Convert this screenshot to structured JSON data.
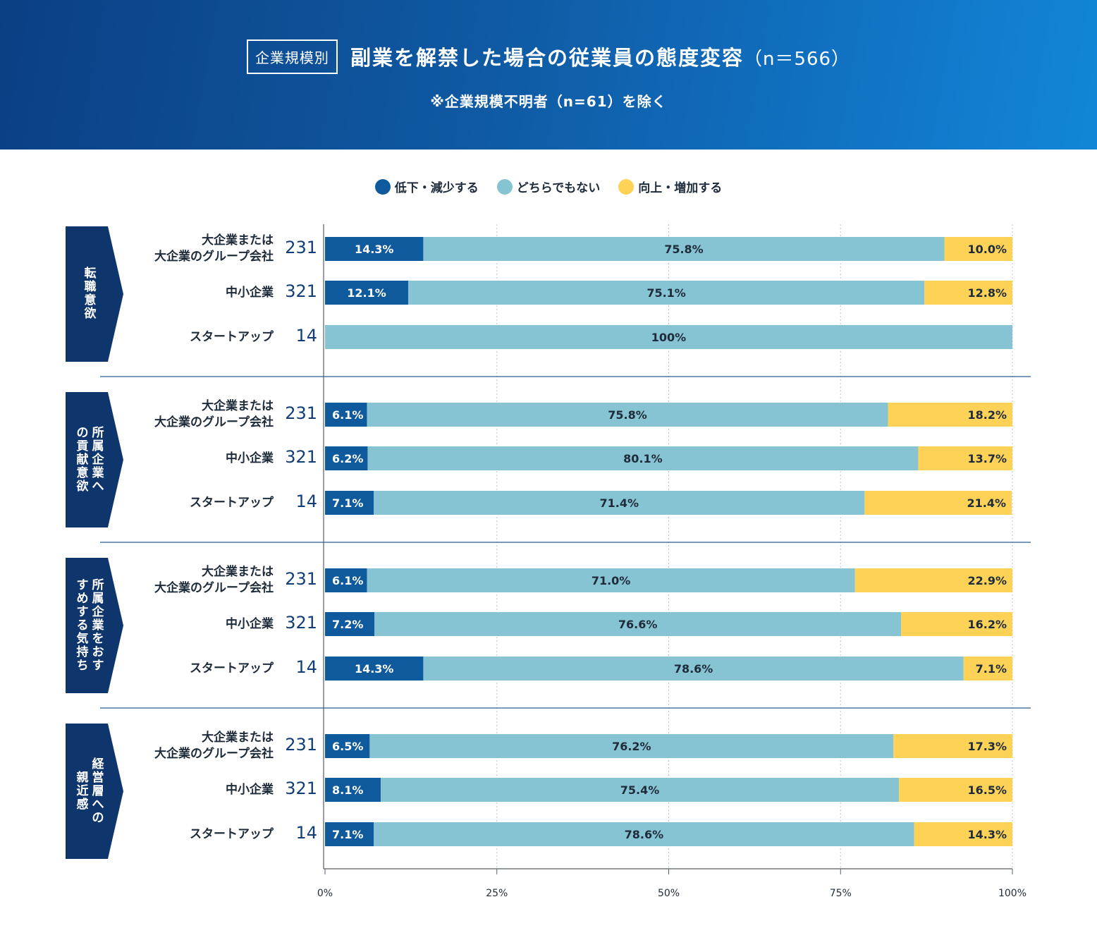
{
  "header": {
    "tag": "企業規模別",
    "title": "副業を解禁した場合の従業員の態度変容",
    "title_n": "（n＝566）",
    "subtitle": "※企業規模不明者（n=61）を除く",
    "bg_color": "#0f5aa3"
  },
  "legend": [
    {
      "label": "低下・減少する",
      "color": "#0f5a9c"
    },
    {
      "label": "どちらでもない",
      "color": "#87c4d3"
    },
    {
      "label": "向上・増加する",
      "color": "#fdd257"
    }
  ],
  "colors": {
    "decrease": "#0f5a9c",
    "neutral": "#87c4d3",
    "increase": "#fdd257",
    "group_label_bg": "#0e356c",
    "divider": "#2a5e93"
  },
  "chart_data": {
    "type": "bar",
    "orientation": "horizontal",
    "stacked": true,
    "xlim": [
      0,
      100
    ],
    "x_ticks": [
      "0%",
      "25%",
      "50%",
      "75%",
      "100%"
    ],
    "series": [
      {
        "name": "低下・減少する"
      },
      {
        "name": "どちらでもない"
      },
      {
        "name": "向上・増加する"
      }
    ],
    "groups": [
      {
        "label": "転職意欲",
        "rows": [
          {
            "label": "大企業または\n大企業のグループ会社",
            "n": "231",
            "values": [
              14.3,
              75.8,
              10.0
            ],
            "labels": [
              "14.3%",
              "75.8%",
              "10.0%"
            ]
          },
          {
            "label": "中小企業",
            "n": "321",
            "values": [
              12.1,
              75.1,
              12.8
            ],
            "labels": [
              "12.1%",
              "75.1%",
              "12.8%"
            ]
          },
          {
            "label": "スタートアップ",
            "n": "14",
            "values": [
              0,
              100,
              0
            ],
            "labels": [
              "",
              "100%",
              ""
            ]
          }
        ]
      },
      {
        "label": "所属企業への貢献意欲",
        "rows": [
          {
            "label": "大企業または\n大企業のグループ会社",
            "n": "231",
            "values": [
              6.1,
              75.8,
              18.2
            ],
            "labels": [
              "6.1%",
              "75.8%",
              "18.2%"
            ]
          },
          {
            "label": "中小企業",
            "n": "321",
            "values": [
              6.2,
              80.1,
              13.7
            ],
            "labels": [
              "6.2%",
              "80.1%",
              "13.7%"
            ]
          },
          {
            "label": "スタートアップ",
            "n": "14",
            "values": [
              7.1,
              71.4,
              21.4
            ],
            "labels": [
              "7.1%",
              "71.4%",
              "21.4%"
            ]
          }
        ]
      },
      {
        "label": "所属企業をおすすめする気持ち",
        "rows": [
          {
            "label": "大企業または\n大企業のグループ会社",
            "n": "231",
            "values": [
              6.1,
              71.0,
              22.9
            ],
            "labels": [
              "6.1%",
              "71.0%",
              "22.9%"
            ]
          },
          {
            "label": "中小企業",
            "n": "321",
            "values": [
              7.2,
              76.6,
              16.2
            ],
            "labels": [
              "7.2%",
              "76.6%",
              "16.2%"
            ]
          },
          {
            "label": "スタートアップ",
            "n": "14",
            "values": [
              14.3,
              78.6,
              7.1
            ],
            "labels": [
              "14.3%",
              "78.6%",
              "7.1%"
            ]
          }
        ]
      },
      {
        "label": "経営層への親近感",
        "rows": [
          {
            "label": "大企業または\n大企業のグループ会社",
            "n": "231",
            "values": [
              6.5,
              76.2,
              17.3
            ],
            "labels": [
              "6.5%",
              "76.2%",
              "17.3%"
            ]
          },
          {
            "label": "中小企業",
            "n": "321",
            "values": [
              8.1,
              75.4,
              16.5
            ],
            "labels": [
              "8.1%",
              "75.4%",
              "16.5%"
            ]
          },
          {
            "label": "スタートアップ",
            "n": "14",
            "values": [
              7.1,
              78.6,
              14.3
            ],
            "labels": [
              "7.1%",
              "78.6%",
              "14.3%"
            ]
          }
        ]
      }
    ]
  }
}
